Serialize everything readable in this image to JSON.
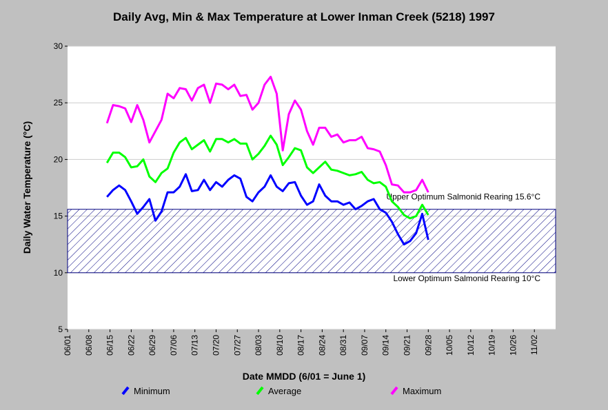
{
  "chart_data": {
    "type": "line",
    "title": "Daily Avg, Min & Max Temperature at Lower Inman Creek (5218) 1997",
    "x_label": "Date MMDD (6/01 = June 1)",
    "y_label": "Daily Water Temperature (°C)",
    "x": [
      13,
      15,
      17,
      19,
      21,
      23,
      25,
      27,
      29,
      31,
      33,
      35,
      37,
      39,
      41,
      43,
      45,
      47,
      49,
      51,
      53,
      55,
      57,
      59,
      61,
      63,
      65,
      67,
      69,
      71,
      73,
      75,
      77,
      79,
      81,
      83,
      85,
      87,
      89,
      91,
      93,
      95,
      97,
      99,
      101,
      103,
      105,
      107,
      109,
      111,
      113,
      115,
      117,
      119
    ],
    "series": [
      {
        "name": "Minimum",
        "color": "#0000ff",
        "values": [
          16.7,
          17.3,
          17.7,
          17.3,
          16.3,
          15.2,
          15.8,
          16.5,
          14.6,
          15.4,
          17.1,
          17.1,
          17.6,
          18.7,
          17.2,
          17.3,
          18.2,
          17.3,
          18.0,
          17.6,
          18.2,
          18.6,
          18.3,
          16.7,
          16.3,
          17.1,
          17.6,
          18.6,
          17.6,
          17.2,
          17.9,
          18.0,
          16.8,
          16.0,
          16.3,
          17.8,
          16.8,
          16.3,
          16.3,
          16.0,
          16.2,
          15.6,
          15.9,
          16.3,
          16.5,
          15.6,
          15.3,
          14.5,
          13.4,
          12.5,
          12.8,
          13.5,
          15.2,
          12.9
        ]
      },
      {
        "name": "Average",
        "color": "#00ff00",
        "values": [
          19.7,
          20.6,
          20.6,
          20.2,
          19.3,
          19.4,
          20.0,
          18.5,
          18.0,
          18.8,
          19.2,
          20.6,
          21.5,
          21.9,
          20.9,
          21.3,
          21.7,
          20.7,
          21.8,
          21.8,
          21.5,
          21.8,
          21.4,
          21.4,
          20.0,
          20.5,
          21.2,
          22.1,
          21.3,
          19.5,
          20.2,
          21.0,
          20.8,
          19.3,
          18.8,
          19.3,
          19.8,
          19.1,
          19.0,
          18.8,
          18.6,
          18.7,
          18.9,
          18.2,
          17.9,
          18.0,
          17.6,
          16.3,
          15.8,
          15.1,
          14.8,
          15.0,
          16.0,
          15.1
        ]
      },
      {
        "name": "Maximum",
        "color": "#ff00ff",
        "values": [
          23.2,
          24.8,
          24.7,
          24.5,
          23.3,
          24.8,
          23.5,
          21.5,
          22.5,
          23.5,
          25.8,
          25.4,
          26.3,
          26.2,
          25.2,
          26.3,
          26.6,
          25.0,
          26.7,
          26.6,
          26.2,
          26.6,
          25.6,
          25.7,
          24.4,
          25.0,
          26.6,
          27.3,
          25.8,
          20.8,
          24.0,
          25.2,
          24.4,
          22.5,
          21.3,
          22.8,
          22.8,
          22.0,
          22.2,
          21.5,
          21.7,
          21.7,
          22.0,
          21.0,
          20.9,
          20.7,
          19.5,
          17.8,
          17.7,
          17.1,
          17.1,
          17.3,
          18.2,
          17.1
        ]
      }
    ],
    "band": {
      "low": 10,
      "high": 15.6,
      "color": "#000080",
      "upper_label": "Upper Optimum Salmonid Rearing 15.6°C",
      "lower_label": "Lower Optimum Salmonid Rearing 10°C"
    },
    "xlim": [
      0,
      161
    ],
    "xticks": [
      {
        "value": 0,
        "label": "06/01"
      },
      {
        "value": 7,
        "label": "06/08"
      },
      {
        "value": 14,
        "label": "06/15"
      },
      {
        "value": 21,
        "label": "06/22"
      },
      {
        "value": 28,
        "label": "06/29"
      },
      {
        "value": 35,
        "label": "07/06"
      },
      {
        "value": 42,
        "label": "07/13"
      },
      {
        "value": 49,
        "label": "07/20"
      },
      {
        "value": 56,
        "label": "07/27"
      },
      {
        "value": 63,
        "label": "08/03"
      },
      {
        "value": 70,
        "label": "08/10"
      },
      {
        "value": 77,
        "label": "08/17"
      },
      {
        "value": 84,
        "label": "08/24"
      },
      {
        "value": 91,
        "label": "08/31"
      },
      {
        "value": 98,
        "label": "09/07"
      },
      {
        "value": 105,
        "label": "09/14"
      },
      {
        "value": 112,
        "label": "09/21"
      },
      {
        "value": 119,
        "label": "09/28"
      },
      {
        "value": 126,
        "label": "10/05"
      },
      {
        "value": 133,
        "label": "10/12"
      },
      {
        "value": 140,
        "label": "10/19"
      },
      {
        "value": 147,
        "label": "10/26"
      },
      {
        "value": 154,
        "label": "11/02"
      }
    ],
    "ylim": [
      5,
      30
    ],
    "yticks": [
      5,
      10,
      15,
      20,
      25,
      30
    ],
    "grid": true
  }
}
